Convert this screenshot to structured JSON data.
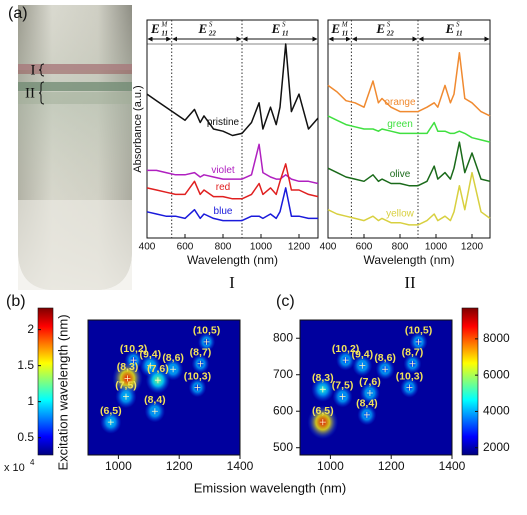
{
  "panel_labels": [
    "(a)",
    "(b)",
    "(c)"
  ],
  "tube": {
    "labels": [
      "I",
      "II"
    ]
  },
  "chart_data": [
    {
      "type": "line",
      "caption": "I",
      "xlabel": "Wavelength (nm)",
      "ylabel": "Absorbance (a.u.)",
      "xlim": [
        400,
        1300
      ],
      "xticks": [
        400,
        600,
        800,
        1000,
        1200
      ],
      "ylim": [
        0,
        10
      ],
      "grid": false,
      "dividers": [
        530,
        900
      ],
      "regions": [
        {
          "letter": "E",
          "sup": "M",
          "sub": "11"
        },
        {
          "letter": "E",
          "sup": "S",
          "sub": "22"
        },
        {
          "letter": "E",
          "sup": "S",
          "sub": "11"
        }
      ],
      "x": [
        400,
        450,
        500,
        550,
        600,
        650,
        680,
        700,
        750,
        800,
        850,
        900,
        950,
        990,
        1010,
        1050,
        1080,
        1100,
        1130,
        1160,
        1200,
        1250,
        1300
      ],
      "series": [
        {
          "name": "pristine",
          "color": "#111111",
          "values": [
            6.6,
            6.3,
            6.0,
            5.7,
            5.4,
            5.9,
            5.3,
            5.6,
            5.0,
            4.9,
            4.7,
            4.8,
            5.3,
            6.2,
            5.0,
            6.0,
            5.2,
            6.0,
            8.9,
            5.8,
            6.6,
            5.0,
            5.5
          ]
        },
        {
          "name": "violet",
          "color": "#b020c0",
          "values": [
            3.1,
            3.1,
            3.0,
            2.9,
            2.9,
            3.0,
            2.8,
            2.9,
            2.8,
            2.7,
            2.7,
            2.7,
            2.9,
            4.3,
            3.0,
            2.8,
            2.7,
            2.7,
            2.9,
            2.7,
            2.6,
            2.6,
            2.5
          ]
        },
        {
          "name": "red",
          "color": "#e02020",
          "values": [
            2.3,
            2.2,
            2.1,
            2.0,
            2.0,
            2.6,
            2.0,
            2.2,
            1.9,
            1.9,
            1.8,
            1.8,
            2.0,
            2.5,
            2.0,
            2.3,
            2.0,
            2.6,
            3.4,
            2.2,
            2.2,
            2.0,
            1.9
          ]
        },
        {
          "name": "blue",
          "color": "#1a1adb",
          "values": [
            1.2,
            1.1,
            1.0,
            1.0,
            0.9,
            1.3,
            0.9,
            1.1,
            0.9,
            0.8,
            0.8,
            0.8,
            1.0,
            1.0,
            0.9,
            1.1,
            0.9,
            1.2,
            2.3,
            1.0,
            1.0,
            0.9,
            0.9
          ]
        }
      ]
    },
    {
      "type": "line",
      "caption": "II",
      "xlabel": "Wavelength (nm)",
      "xlim": [
        400,
        1300
      ],
      "xticks": [
        400,
        600,
        800,
        1000,
        1200
      ],
      "ylim": [
        0,
        10
      ],
      "grid": false,
      "dividers": [
        530,
        900
      ],
      "regions": [
        {
          "letter": "E",
          "sup": "M",
          "sub": "11"
        },
        {
          "letter": "E",
          "sup": "S",
          "sub": "22"
        },
        {
          "letter": "E",
          "sup": "S",
          "sub": "11"
        }
      ],
      "x": [
        400,
        450,
        500,
        550,
        600,
        650,
        680,
        700,
        750,
        800,
        850,
        900,
        950,
        990,
        1010,
        1050,
        1080,
        1100,
        1130,
        1160,
        1200,
        1250,
        1300
      ],
      "series": [
        {
          "name": "orange",
          "color": "#f08a30",
          "values": [
            7.0,
            6.7,
            6.3,
            6.2,
            6.0,
            7.2,
            6.2,
            6.4,
            6.0,
            5.8,
            5.8,
            5.8,
            6.0,
            6.2,
            6.0,
            7.0,
            6.2,
            6.6,
            8.5,
            6.4,
            6.2,
            5.8,
            5.6
          ]
        },
        {
          "name": "green",
          "color": "#40e040",
          "values": [
            5.6,
            5.4,
            5.2,
            5.1,
            5.0,
            5.0,
            4.9,
            5.0,
            4.9,
            4.8,
            4.8,
            4.8,
            4.8,
            5.3,
            4.9,
            4.9,
            4.8,
            4.8,
            4.9,
            4.8,
            4.6,
            4.5,
            4.4
          ]
        },
        {
          "name": "olive",
          "color": "#1a6a1a",
          "values": [
            3.2,
            3.0,
            2.8,
            2.7,
            2.6,
            2.9,
            2.6,
            2.7,
            2.5,
            2.5,
            2.4,
            2.4,
            2.6,
            3.3,
            2.7,
            3.0,
            2.7,
            3.2,
            4.4,
            3.0,
            3.9,
            2.7,
            2.6
          ]
        },
        {
          "name": "yellow",
          "color": "#d8d040",
          "values": [
            1.3,
            1.1,
            1.0,
            0.9,
            0.8,
            1.0,
            0.8,
            0.9,
            0.7,
            0.7,
            0.6,
            0.6,
            0.8,
            1.1,
            0.8,
            1.0,
            0.8,
            1.2,
            2.4,
            1.3,
            3.0,
            1.2,
            0.9
          ]
        }
      ]
    },
    {
      "type": "heatmap",
      "xlabel": "Emission wavelength (nm)",
      "ylabel": "Excitation wavelength (nm)",
      "xlim": [
        900,
        1400
      ],
      "xticks": [
        1000,
        1200,
        1400
      ],
      "ylim": [
        480,
        850
      ],
      "colorbar": {
        "lim": [
          2600,
          23000
        ],
        "ticks": [
          {
            "value": 5000,
            "label": "0.5"
          },
          {
            "value": 10000,
            "label": "1"
          },
          {
            "value": 15000,
            "label": "1.5"
          },
          {
            "value": 20000,
            "label": "2"
          }
        ],
        "multiplier": {
          "base": "x 10",
          "exp": "4"
        }
      },
      "spots": [
        {
          "label": "(10,2)",
          "x": 1050,
          "y": 740,
          "intensity": 5000
        },
        {
          "label": "(10,5)",
          "x": 1290,
          "y": 790,
          "intensity": 4000
        },
        {
          "label": "(9,4)",
          "x": 1105,
          "y": 725,
          "intensity": 9000
        },
        {
          "label": "(8,6)",
          "x": 1180,
          "y": 715,
          "intensity": 8000
        },
        {
          "label": "(8,7)",
          "x": 1270,
          "y": 730,
          "intensity": 4500
        },
        {
          "label": "(8,3)",
          "x": 1030,
          "y": 690,
          "intensity": 21000
        },
        {
          "label": "(7,6)",
          "x": 1130,
          "y": 685,
          "intensity": 13000
        },
        {
          "label": "(10,3)",
          "x": 1260,
          "y": 665,
          "intensity": 4500
        },
        {
          "label": "(7,5)",
          "x": 1025,
          "y": 640,
          "intensity": 9000
        },
        {
          "label": "(8,4)",
          "x": 1120,
          "y": 600,
          "intensity": 8000
        },
        {
          "label": "(6,5)",
          "x": 975,
          "y": 570,
          "intensity": 9000
        }
      ]
    },
    {
      "type": "heatmap",
      "xlim": [
        900,
        1400
      ],
      "xticks": [
        1000,
        1200,
        1400
      ],
      "ylim": [
        480,
        850
      ],
      "yticks": [
        500,
        600,
        700,
        800
      ],
      "colorbar": {
        "lim": [
          1600,
          9700
        ],
        "ticks": [
          2000,
          4000,
          6000,
          8000
        ]
      },
      "spots": [
        {
          "label": "(10,2)",
          "x": 1050,
          "y": 740,
          "intensity": 3000
        },
        {
          "label": "(10,5)",
          "x": 1290,
          "y": 790,
          "intensity": 2500
        },
        {
          "label": "(9,4)",
          "x": 1105,
          "y": 725,
          "intensity": 3500
        },
        {
          "label": "(8,6)",
          "x": 1180,
          "y": 715,
          "intensity": 3000
        },
        {
          "label": "(8,7)",
          "x": 1270,
          "y": 730,
          "intensity": 2500
        },
        {
          "label": "(8,3)",
          "x": 975,
          "y": 660,
          "intensity": 5000
        },
        {
          "label": "(7,5)",
          "x": 1040,
          "y": 640,
          "intensity": 3500
        },
        {
          "label": "(7,6)",
          "x": 1130,
          "y": 650,
          "intensity": 3500
        },
        {
          "label": "(10,3)",
          "x": 1260,
          "y": 665,
          "intensity": 2800
        },
        {
          "label": "(8,4)",
          "x": 1120,
          "y": 590,
          "intensity": 3000
        },
        {
          "label": "(6,5)",
          "x": 975,
          "y": 570,
          "intensity": 9000
        }
      ]
    }
  ]
}
